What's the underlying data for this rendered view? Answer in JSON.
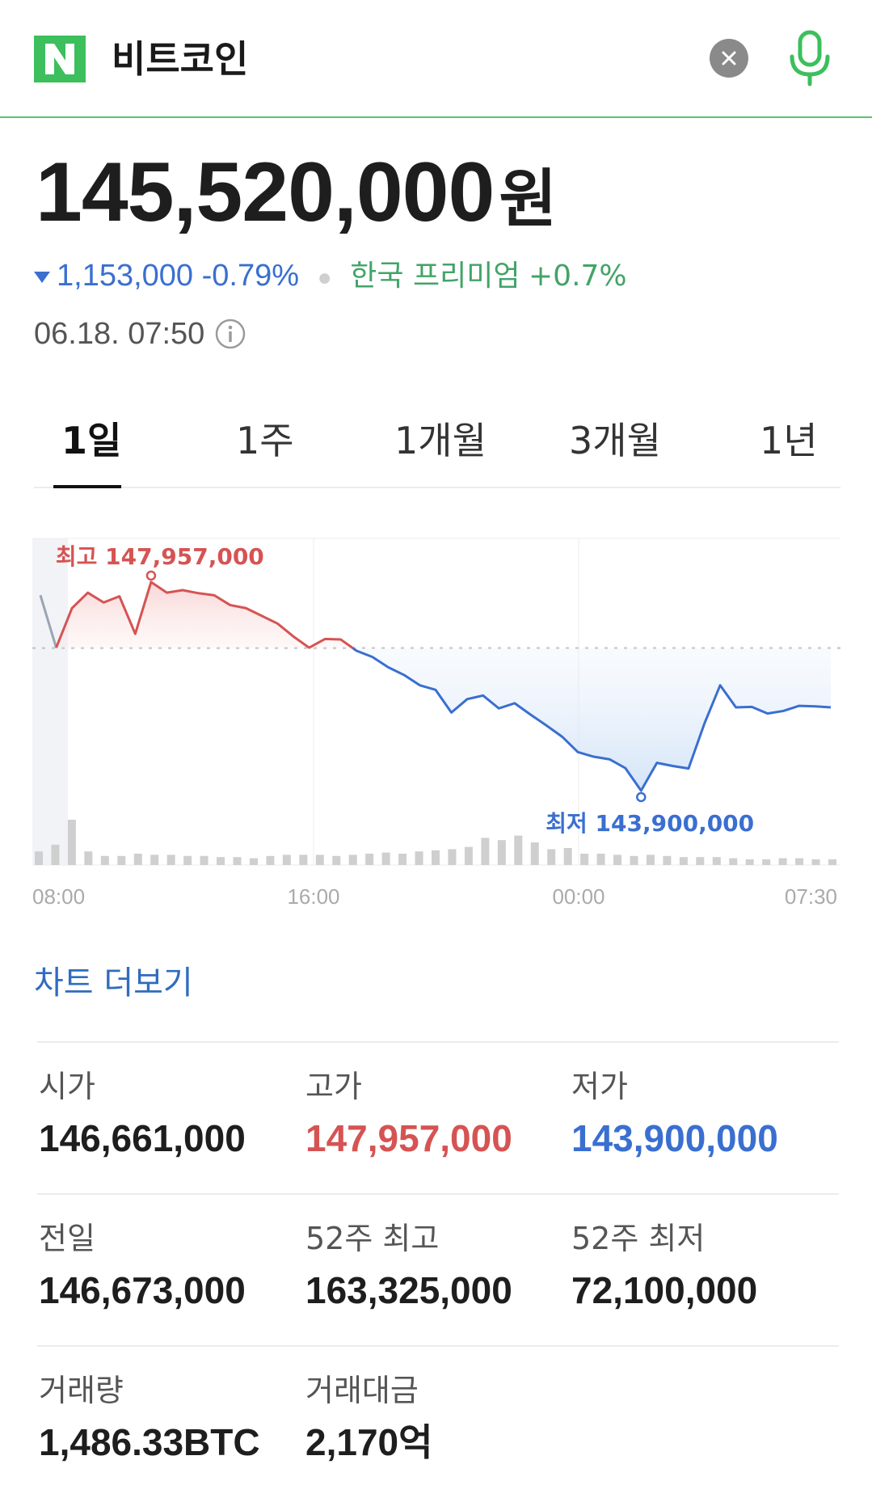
{
  "search": {
    "query": "비트코인"
  },
  "colors": {
    "brand": "#5bc26b",
    "up": "#d65353",
    "down": "#3a6fd0",
    "premium": "#43a368"
  },
  "price": {
    "value": "145,520,000",
    "unit": "원"
  },
  "change": {
    "amount": "1,153,000",
    "percent": "-0.79%",
    "premium_label": "한국 프리미엄",
    "premium_value": "+0.7%"
  },
  "timestamp": "06.18. 07:50",
  "tabs": [
    {
      "label": "1일",
      "active": true
    },
    {
      "label": "1주",
      "active": false
    },
    {
      "label": "1개월",
      "active": false
    },
    {
      "label": "3개월",
      "active": false
    },
    {
      "label": "1년",
      "active": false
    }
  ],
  "chart_data": {
    "type": "line",
    "x_ticks": [
      "08:00",
      "16:00",
      "00:00",
      "07:30"
    ],
    "baseline": 146673000,
    "high": {
      "label": "최고",
      "value_text": "147,957,000",
      "value": 147957000
    },
    "low": {
      "label": "최저",
      "value_text": "143,900,000",
      "value": 143900000
    },
    "series": [
      {
        "values": [
          147700000,
          146680000,
          147450000,
          147750000,
          147560000,
          147680000,
          146950000,
          147957000,
          147750000,
          147800000,
          147740000,
          147700000,
          147510000,
          147450000,
          147300000,
          147150000,
          146900000,
          146680000,
          146850000,
          146840000,
          146620000,
          146500000,
          146300000,
          146150000,
          145950000,
          145860000,
          145420000,
          145680000,
          145750000,
          145500000,
          145600000,
          145380000,
          145170000,
          144950000,
          144650000,
          144560000,
          144510000,
          144340000,
          143900000,
          144440000,
          144380000,
          144330000,
          145200000,
          145950000,
          145520000,
          145530000,
          145400000,
          145450000,
          145550000,
          145540000,
          145520000
        ]
      }
    ],
    "volume": [
      12,
      18,
      40,
      12,
      8,
      8,
      10,
      9,
      9,
      8,
      8,
      7,
      7,
      6,
      8,
      9,
      9,
      9,
      8,
      9,
      10,
      11,
      10,
      12,
      13,
      14,
      16,
      24,
      22,
      26,
      20,
      14,
      15,
      10,
      10,
      9,
      8,
      9,
      8,
      7,
      7,
      7,
      6,
      5,
      5,
      6,
      6,
      5,
      5
    ]
  },
  "more_chart": "차트 더보기",
  "stats": [
    [
      {
        "label": "시가",
        "value": "146,661,000",
        "tone": ""
      },
      {
        "label": "고가",
        "value": "147,957,000",
        "tone": "red"
      },
      {
        "label": "저가",
        "value": "143,900,000",
        "tone": "blue"
      }
    ],
    [
      {
        "label": "전일",
        "value": "146,673,000",
        "tone": ""
      },
      {
        "label": "52주 최고",
        "value": "163,325,000",
        "tone": ""
      },
      {
        "label": "52주 최저",
        "value": "72,100,000",
        "tone": ""
      }
    ],
    [
      {
        "label": "거래량",
        "value": "1,486.33BTC",
        "tone": ""
      },
      {
        "label": "거래대금",
        "value": "2,170억",
        "tone": ""
      }
    ]
  ]
}
